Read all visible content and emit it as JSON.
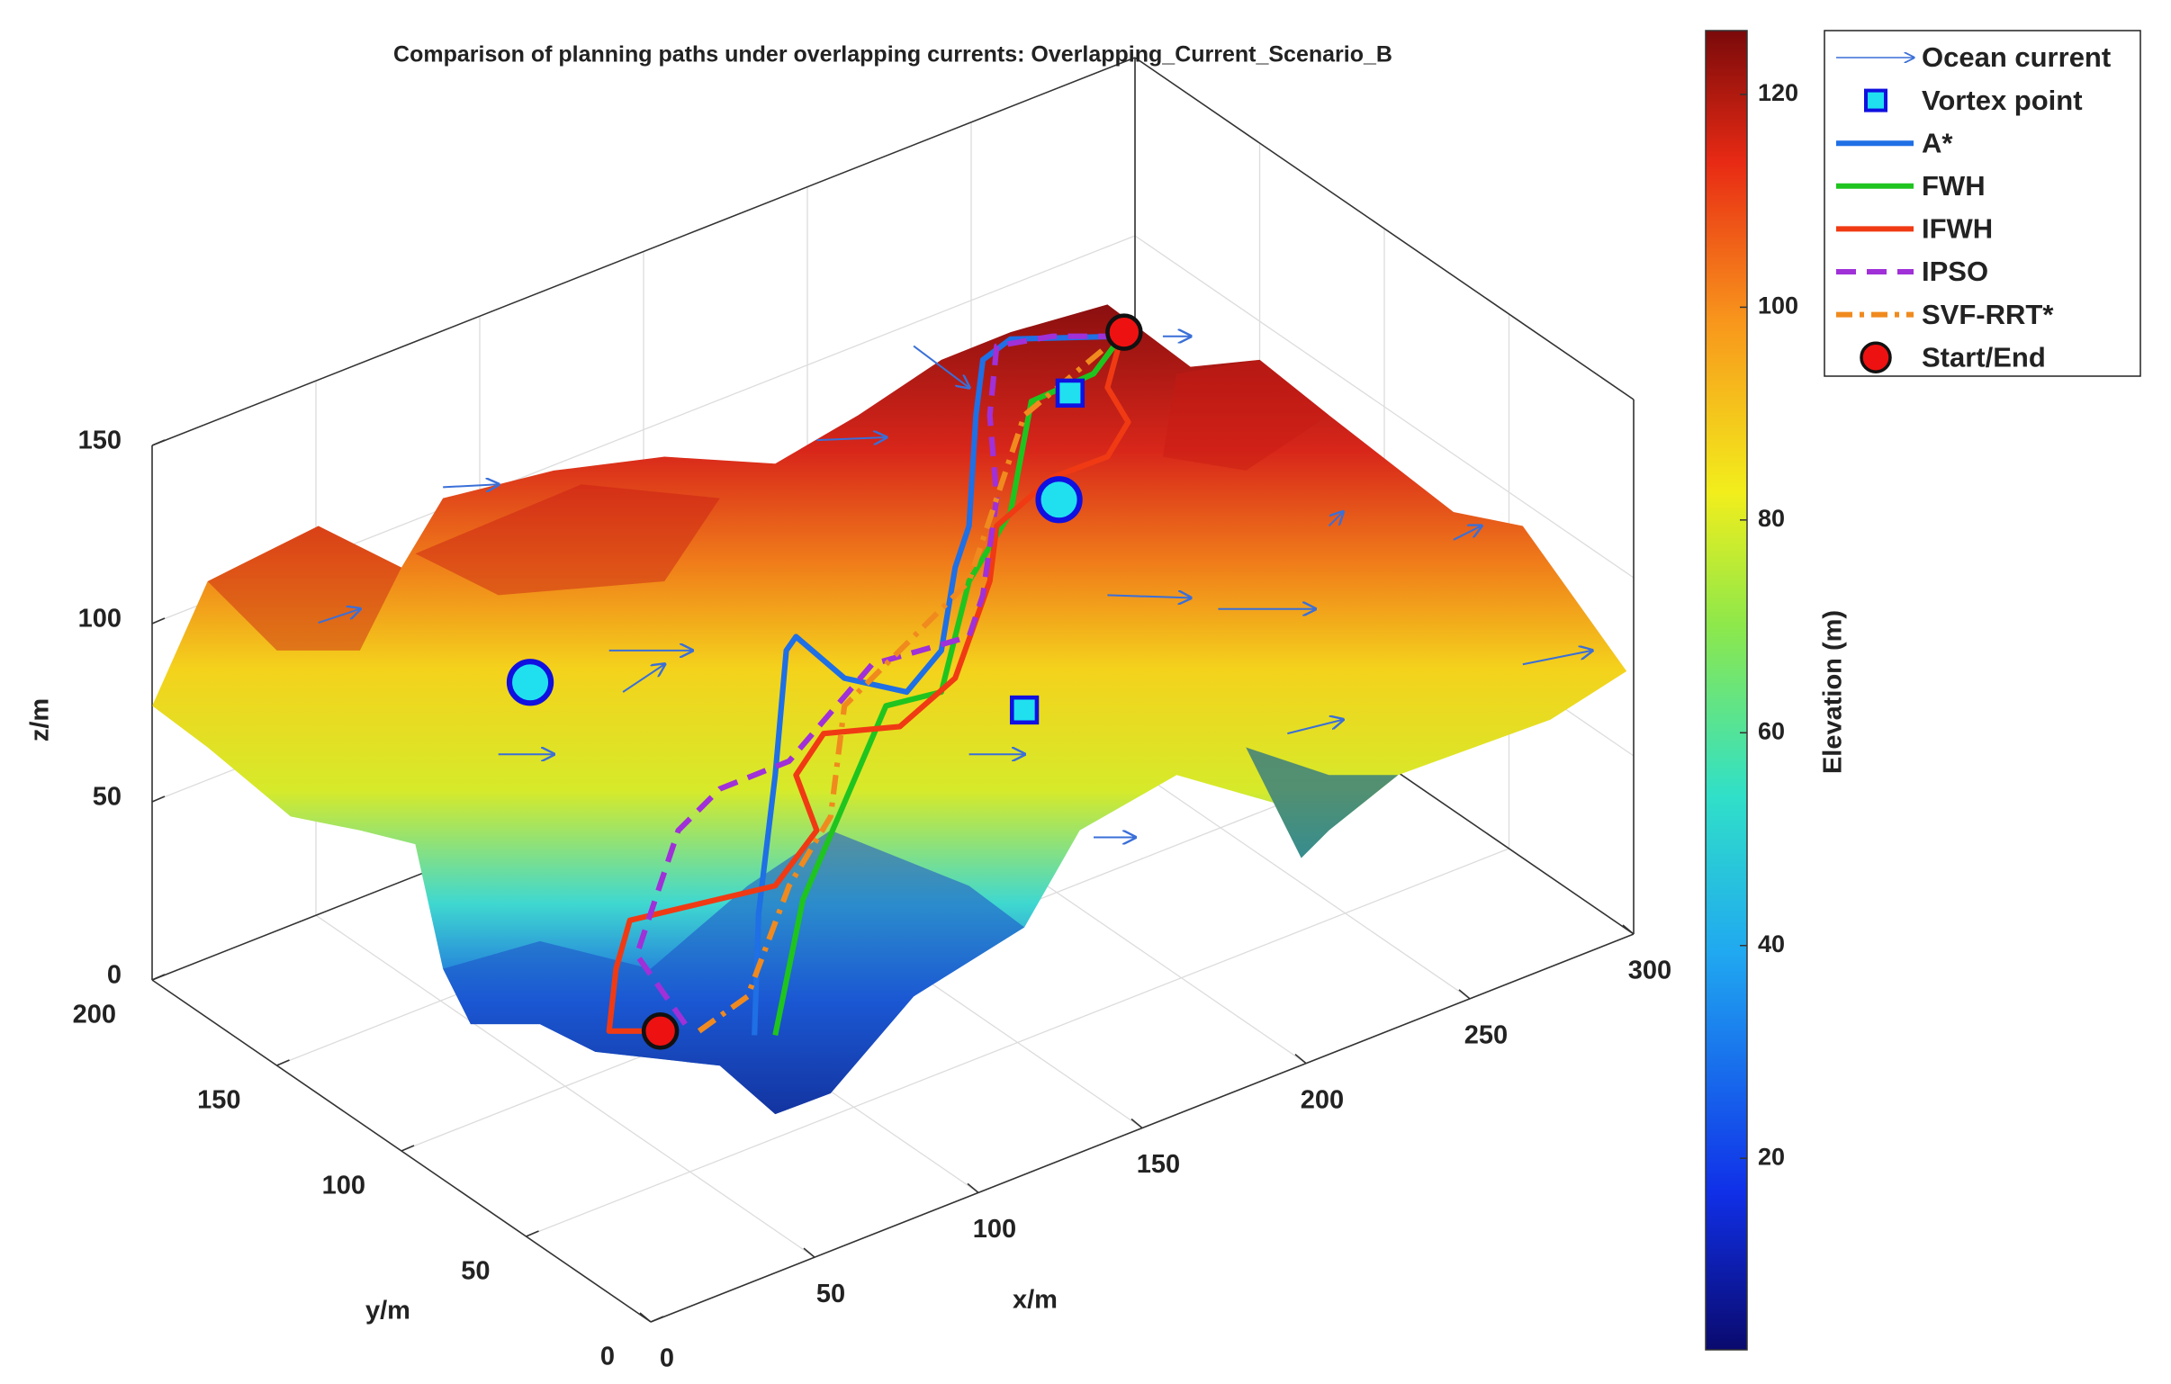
{
  "chart_data": {
    "type": "surface3d",
    "title": "Comparison of planning paths under overlapping currents: Overlapping_Current_Scenario_B",
    "xlabel": "x/m",
    "ylabel": "y/m",
    "zlabel": "z/m",
    "xlim": [
      0,
      300
    ],
    "xticks": [
      0,
      50,
      100,
      150,
      200,
      250,
      300
    ],
    "ylim": [
      0,
      200
    ],
    "yticks": [
      0,
      50,
      100,
      150,
      200
    ],
    "zlim": [
      0,
      150
    ],
    "zticks": [
      0,
      50,
      100,
      150
    ],
    "colorbar": {
      "label": "Elevation (m)",
      "lim": [
        2,
        126
      ],
      "ticks": [
        20,
        40,
        60,
        80,
        100,
        120
      ]
    },
    "grid": true,
    "legend": "upper right",
    "series": [
      {
        "name": "Ocean current",
        "color": "#3a6fd8",
        "style": "arrow"
      },
      {
        "name": "Vortex point",
        "color": "#1010e0",
        "style": "square"
      },
      {
        "name": "A*",
        "color": "#1f6fe5",
        "style": "solid"
      },
      {
        "name": "FWH",
        "color": "#1fc41f",
        "style": "solid"
      },
      {
        "name": "IFWH",
        "color": "#f03a14",
        "style": "solid"
      },
      {
        "name": "IPSO",
        "color": "#a030d8",
        "style": "dashed"
      },
      {
        "name": "SVF-RRT*",
        "color": "#f08a1e",
        "style": "dashdot"
      },
      {
        "name": "Start/End",
        "color": "#ee1111",
        "style": "circle"
      }
    ]
  }
}
